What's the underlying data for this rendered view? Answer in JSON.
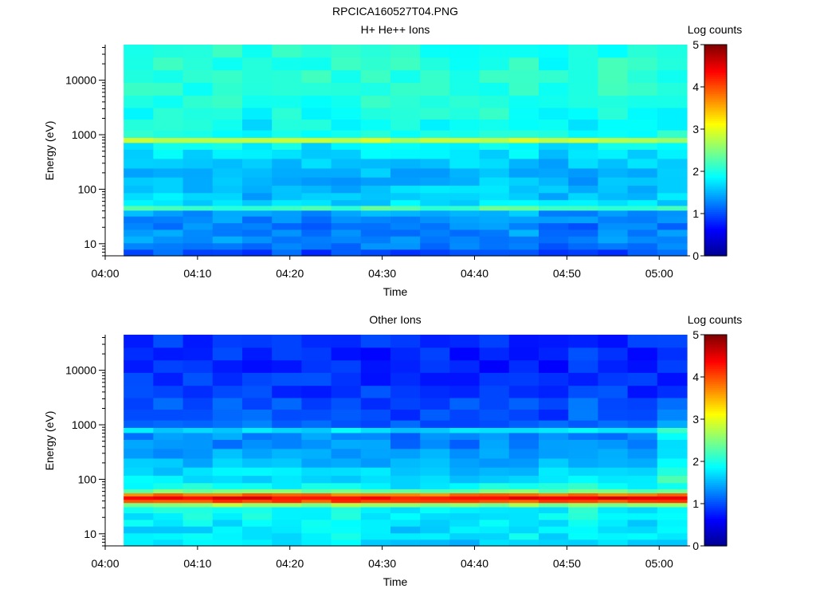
{
  "figure_title": "RPCICA160527T04.PNG",
  "colorbar_label": "Log counts",
  "colorbar_ticks": [
    "0",
    "1",
    "2",
    "3",
    "4",
    "5"
  ],
  "colormap": [
    "#00008f",
    "#0000ff",
    "#0080ff",
    "#00ffff",
    "#80ff80",
    "#ffff00",
    "#ff8000",
    "#ff0000",
    "#800000"
  ],
  "chart_data": [
    {
      "type": "heatmap",
      "title": "H+ He++ Ions",
      "xlabel": "Time",
      "ylabel": "Energy (eV)",
      "yscale": "log",
      "ylim": [
        6,
        45000
      ],
      "xlim": [
        "04:00",
        "05:03"
      ],
      "x_ticks": [
        "04:00",
        "04:10",
        "04:20",
        "04:30",
        "04:40",
        "04:50",
        "05:00"
      ],
      "y_ticks": [
        "10",
        "100",
        "1000",
        "10000"
      ],
      "clim": [
        0,
        5
      ],
      "data_start": "04:02",
      "time_bins": 19,
      "energy_bands_eV": [
        7,
        9,
        12,
        16,
        21,
        28,
        37,
        46,
        55,
        75,
        100,
        140,
        200,
        300,
        450,
        650,
        800,
        1000,
        1500,
        2500,
        4000,
        7000,
        12000,
        20000,
        35000
      ],
      "log_counts_profile": [
        1.0,
        1.2,
        1.3,
        1.3,
        1.2,
        1.3,
        1.4,
        2.2,
        1.7,
        1.6,
        1.6,
        1.5,
        1.5,
        1.6,
        1.7,
        1.8,
        2.75,
        1.95,
        1.9,
        1.95,
        2.0,
        2.05,
        2.05,
        2.05,
        2.0
      ]
    },
    {
      "type": "heatmap",
      "title": "Other Ions",
      "xlabel": "Time",
      "ylabel": "Energy (eV)",
      "yscale": "log",
      "ylim": [
        6,
        45000
      ],
      "xlim": [
        "04:00",
        "05:03"
      ],
      "x_ticks": [
        "04:00",
        "04:10",
        "04:20",
        "04:30",
        "04:40",
        "04:50",
        "05:00"
      ],
      "y_ticks": [
        "10",
        "100",
        "1000",
        "10000"
      ],
      "clim": [
        0,
        5
      ],
      "data_start": "04:02",
      "time_bins": 19,
      "energy_bands_eV": [
        7,
        9,
        12,
        16,
        21,
        28,
        35,
        40,
        46,
        53,
        60,
        75,
        100,
        140,
        200,
        300,
        450,
        650,
        800,
        1000,
        1500,
        2500,
        4000,
        7000,
        12000,
        20000,
        35000
      ],
      "log_counts_profile": [
        1.7,
        1.8,
        1.75,
        1.8,
        1.85,
        1.9,
        2.6,
        4.0,
        4.4,
        3.8,
        2.4,
        1.9,
        1.7,
        1.65,
        1.5,
        1.4,
        1.3,
        1.3,
        1.7,
        1.1,
        1.0,
        1.0,
        0.9,
        0.85,
        0.8,
        0.8,
        0.85
      ]
    }
  ]
}
